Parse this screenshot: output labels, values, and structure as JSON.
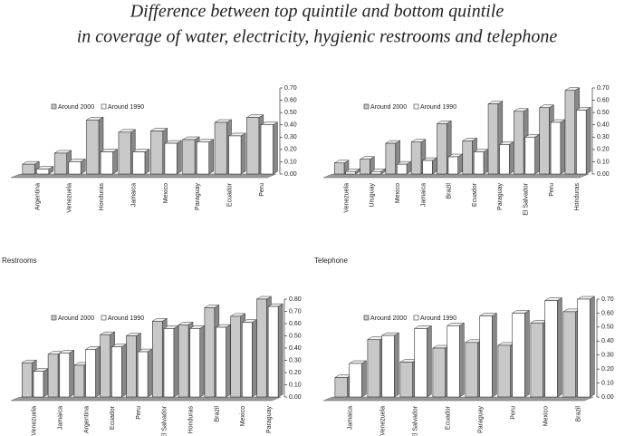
{
  "title": [
    "Difference between top quintile and bottom quintile",
    "in coverage of water, electricity, hygienic restrooms and telephone"
  ],
  "chart_data": [
    {
      "type": "bar",
      "categories": [
        "Argentina",
        "Venezuela",
        "Honduras",
        "Jamaica",
        "Mexico",
        "Paraguay",
        "Ecuador",
        "Peru"
      ],
      "series": [
        {
          "name": "Around 2000",
          "color": "#c8c8c8",
          "values": [
            0.08,
            0.17,
            0.44,
            0.34,
            0.35,
            0.28,
            0.42,
            0.46
          ]
        },
        {
          "name": "Around 1990",
          "color": "#ffffff",
          "values": [
            0.04,
            0.1,
            0.18,
            0.18,
            0.25,
            0.26,
            0.31,
            0.4
          ]
        }
      ],
      "ylim": [
        0,
        0.7
      ],
      "yticks": [
        {
          "value": 0,
          "label": "0.00"
        },
        {
          "value": 0.1,
          "label": "0.10"
        },
        {
          "value": 0.2,
          "label": "0.20"
        },
        {
          "value": 0.3,
          "label": "0.30"
        },
        {
          "value": 0.4,
          "label": "0.40"
        },
        {
          "value": 0.5,
          "label": "0.50"
        },
        {
          "value": 0.6,
          "label": "0.60"
        },
        {
          "value": 0.7,
          "label": "0.70"
        }
      ]
    },
    {
      "type": "bar",
      "categories": [
        "Venezuela",
        "Uruguay",
        "Mexico",
        "Jamaica",
        "Brazil",
        "Ecuador",
        "Paraguay",
        "El Salvador",
        "Peru",
        "Honduras"
      ],
      "series": [
        {
          "name": "Around 2000",
          "color": "#c8c8c8",
          "values": [
            0.09,
            0.12,
            0.25,
            0.26,
            0.41,
            0.27,
            0.57,
            0.51,
            0.54,
            0.68
          ]
        },
        {
          "name": "Around 1990",
          "color": "#ffffff",
          "values": [
            0.02,
            0.02,
            0.08,
            0.11,
            0.14,
            0.18,
            0.24,
            0.3,
            0.42,
            0.52
          ]
        }
      ],
      "ylim": [
        0,
        0.7
      ],
      "yticks": [
        {
          "value": 0,
          "label": "0.00"
        },
        {
          "value": 0.1,
          "label": "0.10"
        },
        {
          "value": 0.2,
          "label": "0.20"
        },
        {
          "value": 0.3,
          "label": "0.30"
        },
        {
          "value": 0.4,
          "label": "0.40"
        },
        {
          "value": 0.5,
          "label": "0.50"
        },
        {
          "value": 0.6,
          "label": "0.60"
        },
        {
          "value": 0.7,
          "label": "0.70"
        }
      ]
    },
    {
      "type": "bar",
      "title": "Restrooms",
      "categories": [
        "Venezuela",
        "Jamaica",
        "Argentina",
        "Ecuador",
        "Peru",
        "El Salvador",
        "Honduras",
        "Brazil",
        "Mexico",
        "Paraguay"
      ],
      "series": [
        {
          "name": "Around 2000",
          "color": "#c8c8c8",
          "values": [
            0.28,
            0.35,
            0.26,
            0.51,
            0.5,
            0.62,
            0.59,
            0.73,
            0.66,
            0.8
          ]
        },
        {
          "name": "Around 1990",
          "color": "#ffffff",
          "values": [
            0.21,
            0.36,
            0.39,
            0.41,
            0.37,
            0.56,
            0.56,
            0.57,
            0.61,
            0.74
          ]
        }
      ],
      "ylim": [
        0,
        0.8
      ],
      "yticks": [
        {
          "value": 0,
          "label": "0.00"
        },
        {
          "value": 0.1,
          "label": "0.10"
        },
        {
          "value": 0.2,
          "label": "0.20"
        },
        {
          "value": 0.3,
          "label": "0.30"
        },
        {
          "value": 0.4,
          "label": "0.40"
        },
        {
          "value": 0.5,
          "label": "0.50"
        },
        {
          "value": 0.6,
          "label": "0.60"
        },
        {
          "value": 0.7,
          "label": "0.70"
        },
        {
          "value": 0.8,
          "label": "0.80"
        }
      ]
    },
    {
      "type": "bar",
      "title": "Telephone",
      "categories": [
        "Jamaica",
        "Venezuela",
        "El Salvador",
        "Ecuador",
        "Paraguay",
        "Peru",
        "Mexico",
        "Brazil"
      ],
      "series": [
        {
          "name": "Around 2000",
          "color": "#c8c8c8",
          "values": [
            0.14,
            0.41,
            0.25,
            0.35,
            0.39,
            0.37,
            0.53,
            0.61
          ]
        },
        {
          "name": "Around 1990",
          "color": "#ffffff",
          "values": [
            0.24,
            0.44,
            0.49,
            0.51,
            0.58,
            0.6,
            0.69,
            0.7
          ]
        }
      ],
      "ylim": [
        0,
        0.7
      ],
      "yticks": [
        {
          "value": 0,
          "label": "0.00"
        },
        {
          "value": 0.1,
          "label": "0.10"
        },
        {
          "value": 0.2,
          "label": "0.20"
        },
        {
          "value": 0.3,
          "label": "0.30"
        },
        {
          "value": 0.4,
          "label": "0.40"
        },
        {
          "value": 0.5,
          "label": "0.50"
        },
        {
          "value": 0.6,
          "label": "0.60"
        },
        {
          "value": 0.7,
          "label": "0.70"
        }
      ]
    }
  ]
}
